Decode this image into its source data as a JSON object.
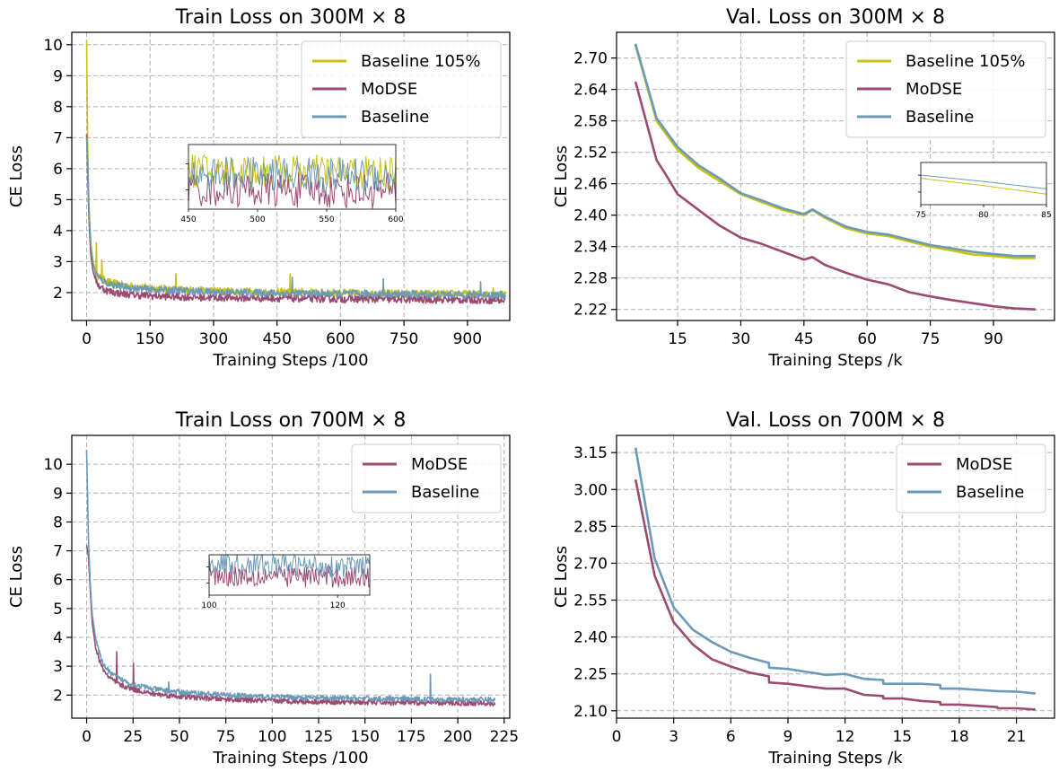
{
  "chart_data": [
    {
      "type": "line",
      "title": "Train Loss on 300M × 8",
      "xlabel": "Training Steps /100",
      "ylabel": "CE Loss",
      "xlim": [
        -35,
        1000
      ],
      "ylim": [
        1.1,
        10.4
      ],
      "xticks": [
        0,
        150,
        300,
        450,
        600,
        750,
        900
      ],
      "xtick_labels": [
        "0",
        "150",
        "300",
        "450",
        "600",
        "750",
        "900"
      ],
      "yticks": [
        2,
        3,
        4,
        5,
        6,
        7,
        8,
        9,
        10
      ],
      "ytick_labels": [
        "2",
        "3",
        "4",
        "5",
        "6",
        "7",
        "8",
        "9",
        "10"
      ],
      "grid": true,
      "legend": "upper right",
      "series": [
        {
          "name": "Baseline 105%",
          "color": "#c9c20f",
          "x": [
            0,
            2,
            5,
            10,
            15,
            20,
            30,
            50,
            80,
            120,
            180,
            250,
            350,
            450,
            550,
            650,
            750,
            850,
            950,
            990
          ],
          "y": [
            10.15,
            7.2,
            5.0,
            3.6,
            3.0,
            2.75,
            2.5,
            2.35,
            2.25,
            2.18,
            2.12,
            2.08,
            2.04,
            2.02,
            2.0,
            1.98,
            1.97,
            1.96,
            1.95,
            1.94
          ],
          "spikes": [
            [
              22,
              3.6
            ],
            [
              35,
              3.05
            ],
            [
              210,
              2.6
            ],
            [
              480,
              2.6
            ],
            [
              960,
              2.15
            ]
          ]
        },
        {
          "name": "MoDSE",
          "color": "#9b4a72",
          "x": [
            0,
            2,
            5,
            10,
            15,
            20,
            30,
            50,
            80,
            120,
            180,
            250,
            350,
            450,
            550,
            650,
            750,
            850,
            950,
            990
          ],
          "y": [
            7.1,
            6.2,
            4.5,
            3.2,
            2.7,
            2.45,
            2.2,
            2.05,
            1.97,
            1.92,
            1.88,
            1.85,
            1.83,
            1.82,
            1.8,
            1.79,
            1.78,
            1.77,
            1.76,
            1.75
          ],
          "spikes": []
        },
        {
          "name": "Baseline",
          "color": "#6b9ab8",
          "x": [
            0,
            2,
            5,
            10,
            15,
            20,
            30,
            50,
            80,
            120,
            180,
            250,
            350,
            450,
            550,
            650,
            750,
            850,
            950,
            990
          ],
          "y": [
            7.0,
            6.6,
            4.8,
            3.5,
            2.95,
            2.7,
            2.45,
            2.3,
            2.2,
            2.13,
            2.08,
            2.04,
            2.0,
            1.98,
            1.97,
            1.96,
            1.95,
            1.94,
            1.93,
            1.92
          ],
          "spikes": [
            [
              485,
              2.5
            ],
            [
              700,
              2.45
            ],
            [
              930,
              2.35
            ]
          ]
        }
      ],
      "inset": {
        "xlim": [
          450,
          600
        ],
        "xticks": [
          450,
          500,
          550,
          600
        ],
        "xtick_labels": [
          "450",
          "500",
          "550",
          "600"
        ]
      }
    },
    {
      "type": "line",
      "title": "Val. Loss on 300M × 8",
      "xlabel": "Training Steps /k",
      "ylabel": "CE Loss",
      "xlim": [
        0.5,
        104.5
      ],
      "ylim": [
        2.199,
        2.749
      ],
      "xticks": [
        15,
        30,
        45,
        60,
        75,
        90
      ],
      "xtick_labels": [
        "15",
        "30",
        "45",
        "60",
        "75",
        "90"
      ],
      "yticks": [
        2.22,
        2.28,
        2.34,
        2.4,
        2.46,
        2.52,
        2.58,
        2.64,
        2.7
      ],
      "ytick_labels": [
        "2.22",
        "2.28",
        "2.34",
        "2.40",
        "2.46",
        "2.52",
        "2.58",
        "2.64",
        "2.70"
      ],
      "grid": true,
      "legend": "upper right",
      "series": [
        {
          "name": "Baseline 105%",
          "color": "#c9c20f",
          "x": [
            5,
            10,
            15,
            20,
            25,
            30,
            35,
            40,
            45,
            47,
            50,
            55,
            60,
            65,
            70,
            75,
            80,
            85,
            90,
            95,
            100
          ],
          "y": [
            2.725,
            2.58,
            2.525,
            2.49,
            2.465,
            2.44,
            2.425,
            2.41,
            2.4,
            2.41,
            2.395,
            2.375,
            2.365,
            2.36,
            2.35,
            2.34,
            2.333,
            2.325,
            2.322,
            2.318,
            2.318
          ]
        },
        {
          "name": "MoDSE",
          "color": "#9b4a72",
          "x": [
            5,
            10,
            12,
            15,
            20,
            25,
            30,
            35,
            40,
            45,
            47,
            50,
            55,
            60,
            65,
            70,
            75,
            80,
            85,
            90,
            95,
            100
          ],
          "y": [
            2.655,
            2.505,
            2.48,
            2.44,
            2.41,
            2.38,
            2.357,
            2.345,
            2.33,
            2.315,
            2.32,
            2.305,
            2.29,
            2.277,
            2.268,
            2.253,
            2.245,
            2.238,
            2.232,
            2.226,
            2.222,
            2.22
          ]
        },
        {
          "name": "Baseline",
          "color": "#6b9ab8",
          "x": [
            5,
            10,
            15,
            20,
            25,
            30,
            35,
            40,
            45,
            47,
            50,
            55,
            60,
            65,
            70,
            75,
            80,
            85,
            90,
            95,
            100
          ],
          "y": [
            2.727,
            2.585,
            2.53,
            2.495,
            2.47,
            2.442,
            2.428,
            2.413,
            2.402,
            2.411,
            2.397,
            2.378,
            2.368,
            2.363,
            2.353,
            2.343,
            2.337,
            2.33,
            2.326,
            2.322,
            2.322
          ]
        }
      ],
      "inset": {
        "xlim": [
          75,
          85
        ],
        "xticks": [
          75,
          80,
          85
        ],
        "xtick_labels": [
          "75",
          "80",
          "85"
        ]
      }
    },
    {
      "type": "line",
      "title": "Train Loss on 700M × 8",
      "xlabel": "Training Steps /100",
      "ylabel": "CE Loss",
      "xlim": [
        -8,
        228
      ],
      "ylim": [
        1.2,
        11.0
      ],
      "xticks": [
        0,
        25,
        50,
        75,
        100,
        125,
        150,
        175,
        200,
        225
      ],
      "xtick_labels": [
        "0",
        "25",
        "50",
        "75",
        "100",
        "125",
        "150",
        "175",
        "200",
        "225"
      ],
      "yticks": [
        2,
        3,
        4,
        5,
        6,
        7,
        8,
        9,
        10
      ],
      "ytick_labels": [
        "2",
        "3",
        "4",
        "5",
        "6",
        "7",
        "8",
        "9",
        "10"
      ],
      "grid": true,
      "legend": "upper right",
      "series": [
        {
          "name": "MoDSE",
          "color": "#9b4a72",
          "x": [
            0,
            1,
            2,
            3,
            5,
            8,
            12,
            18,
            25,
            35,
            50,
            75,
            100,
            125,
            150,
            175,
            200,
            220
          ],
          "y": [
            7.2,
            6.8,
            5.6,
            4.5,
            3.6,
            3.0,
            2.6,
            2.35,
            2.2,
            2.05,
            1.95,
            1.85,
            1.8,
            1.77,
            1.75,
            1.73,
            1.72,
            1.71
          ],
          "spikes": [
            [
              16,
              3.5
            ],
            [
              25,
              3.1
            ]
          ]
        },
        {
          "name": "Baseline",
          "color": "#6b9ab8",
          "x": [
            0,
            1,
            2,
            3,
            5,
            8,
            12,
            18,
            25,
            35,
            50,
            75,
            100,
            125,
            150,
            175,
            200,
            220
          ],
          "y": [
            10.5,
            7.3,
            5.8,
            4.8,
            3.9,
            3.2,
            2.8,
            2.55,
            2.38,
            2.22,
            2.1,
            2.0,
            1.94,
            1.9,
            1.88,
            1.86,
            1.85,
            1.84
          ],
          "spikes": [
            [
              44,
              2.45
            ],
            [
              185,
              2.72
            ]
          ]
        }
      ],
      "inset": {
        "xlim": [
          100,
          125
        ],
        "xticks": [
          100,
          120
        ],
        "xtick_labels": [
          "100",
          "120"
        ]
      }
    },
    {
      "type": "line",
      "title": "Val. Loss on 700M × 8",
      "xlabel": "Training Steps /k",
      "ylabel": "CE Loss",
      "xlim": [
        0,
        23
      ],
      "ylim": [
        2.07,
        3.22
      ],
      "xticks": [
        0,
        3,
        6,
        9,
        12,
        15,
        18,
        21
      ],
      "xtick_labels": [
        "0",
        "3",
        "6",
        "9",
        "12",
        "15",
        "18",
        "21"
      ],
      "yticks": [
        2.1,
        2.25,
        2.4,
        2.55,
        2.7,
        2.85,
        3.0,
        3.15
      ],
      "ytick_labels": [
        "2.10",
        "2.25",
        "2.40",
        "2.55",
        "2.70",
        "2.85",
        "3.00",
        "3.15"
      ],
      "grid": true,
      "legend": "upper right",
      "series": [
        {
          "name": "MoDSE",
          "color": "#9b4a72",
          "x": [
            1,
            2,
            3,
            4,
            5,
            6,
            7,
            8,
            8.01,
            9,
            10,
            11,
            12,
            13,
            14,
            14.01,
            15,
            16,
            17,
            17.01,
            18,
            19,
            20,
            20.01,
            21,
            22
          ],
          "y": [
            3.04,
            2.65,
            2.46,
            2.37,
            2.31,
            2.28,
            2.255,
            2.24,
            2.215,
            2.21,
            2.2,
            2.19,
            2.19,
            2.165,
            2.16,
            2.15,
            2.15,
            2.14,
            2.135,
            2.125,
            2.125,
            2.12,
            2.115,
            2.11,
            2.11,
            2.105
          ]
        },
        {
          "name": "Baseline",
          "color": "#6b9ab8",
          "x": [
            1,
            2,
            3,
            4,
            5,
            6,
            7,
            8,
            8.01,
            9,
            10,
            11,
            12,
            13,
            14,
            14.01,
            15,
            16,
            17,
            17.01,
            18,
            19,
            20,
            21,
            22
          ],
          "y": [
            3.17,
            2.72,
            2.52,
            2.43,
            2.38,
            2.34,
            2.315,
            2.295,
            2.275,
            2.27,
            2.258,
            2.246,
            2.25,
            2.23,
            2.225,
            2.21,
            2.21,
            2.21,
            2.205,
            2.19,
            2.19,
            2.185,
            2.18,
            2.178,
            2.17
          ]
        }
      ],
      "inset": null
    }
  ]
}
